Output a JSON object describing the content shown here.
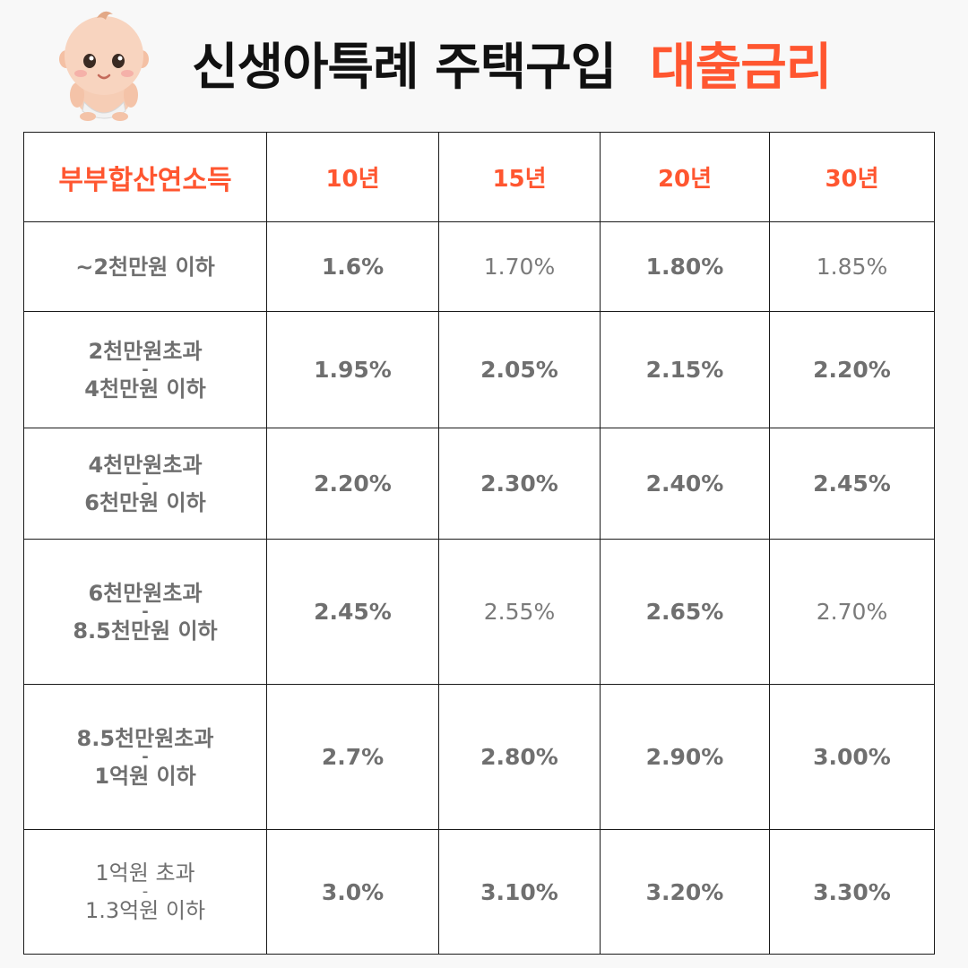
{
  "title": {
    "main": "신생아특례 주택구입",
    "accent": "대출금리"
  },
  "colors": {
    "accent": "#ff5630",
    "text": "#6f6f6f",
    "border": "#1a1a1a"
  },
  "mascot_icon": "baby-icon",
  "table": {
    "headers": [
      "부부합산연소득",
      "10년",
      "15년",
      "20년",
      "30년"
    ],
    "rows": [
      {
        "income": [
          "~2천만원 이하"
        ],
        "rates": [
          "1.6%",
          "1.70%",
          "1.80%",
          "1.85%"
        ]
      },
      {
        "income": [
          "2천만원초과",
          "-",
          "4천만원 이하"
        ],
        "rates": [
          "1.95%",
          "2.05%",
          "2.15%",
          "2.20%"
        ]
      },
      {
        "income": [
          "4천만원초과",
          "-",
          "6천만원 이하"
        ],
        "rates": [
          "2.20%",
          "2.30%",
          "2.40%",
          "2.45%"
        ]
      },
      {
        "income": [
          "6천만원초과",
          "-",
          "8.5천만원 이하"
        ],
        "rates": [
          "2.45%",
          "2.55%",
          "2.65%",
          "2.70%"
        ]
      },
      {
        "income": [
          "8.5천만원초과",
          "-",
          "1억원 이하"
        ],
        "rates": [
          "2.7%",
          "2.80%",
          "2.90%",
          "3.00%"
        ]
      },
      {
        "income": [
          "1억원 초과",
          "-",
          "1.3억원 이하"
        ],
        "rates": [
          "3.0%",
          "3.10%",
          "3.20%",
          "3.30%"
        ]
      }
    ]
  }
}
